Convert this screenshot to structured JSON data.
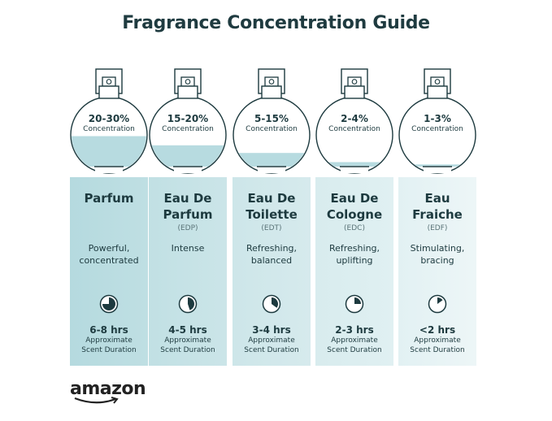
{
  "title": "Fragrance Concentration Guide",
  "colors": {
    "liquid": "#b7dbe0",
    "ink": "#1d3a3f",
    "column_gradient": [
      "#b9dde0",
      "#e3f1f3"
    ]
  },
  "types": [
    {
      "percent": "20-30%",
      "concentration_label": "Concentration",
      "fill_level": 0.42,
      "name": "Parfum",
      "abbr": "",
      "description": "Powerful, concentrated",
      "duration": "6-8 hrs",
      "duration_label": "Approximate Scent Duration",
      "clock_fraction": 0.75
    },
    {
      "percent": "15-20%",
      "concentration_label": "Concentration",
      "fill_level": 0.3,
      "name": "Eau De Parfum",
      "abbr": "(EDP)",
      "description": "Intense",
      "duration": "4-5 hrs",
      "duration_label": "Approximate Scent Duration",
      "clock_fraction": 0.45
    },
    {
      "percent": "5-15%",
      "concentration_label": "Concentration",
      "fill_level": 0.2,
      "name": "Eau De Toilette",
      "abbr": "(EDT)",
      "description": "Refreshing, balanced",
      "duration": "3-4 hrs",
      "duration_label": "Approximate Scent Duration",
      "clock_fraction": 0.35
    },
    {
      "percent": "2-4%",
      "concentration_label": "Concentration",
      "fill_level": 0.08,
      "name": "Eau De Cologne",
      "abbr": "(EDC)",
      "description": "Refreshing, uplifting",
      "duration": "2-3 hrs",
      "duration_label": "Approximate Scent Duration",
      "clock_fraction": 0.25
    },
    {
      "percent": "1-3%",
      "concentration_label": "Concentration",
      "fill_level": 0.05,
      "name": "Eau Fraiche",
      "abbr": "(EDF)",
      "description": "Stimulating, bracing",
      "duration": "<2 hrs",
      "duration_label": "Approximate Scent Duration",
      "clock_fraction": 0.15
    }
  ],
  "logo": "amazon"
}
